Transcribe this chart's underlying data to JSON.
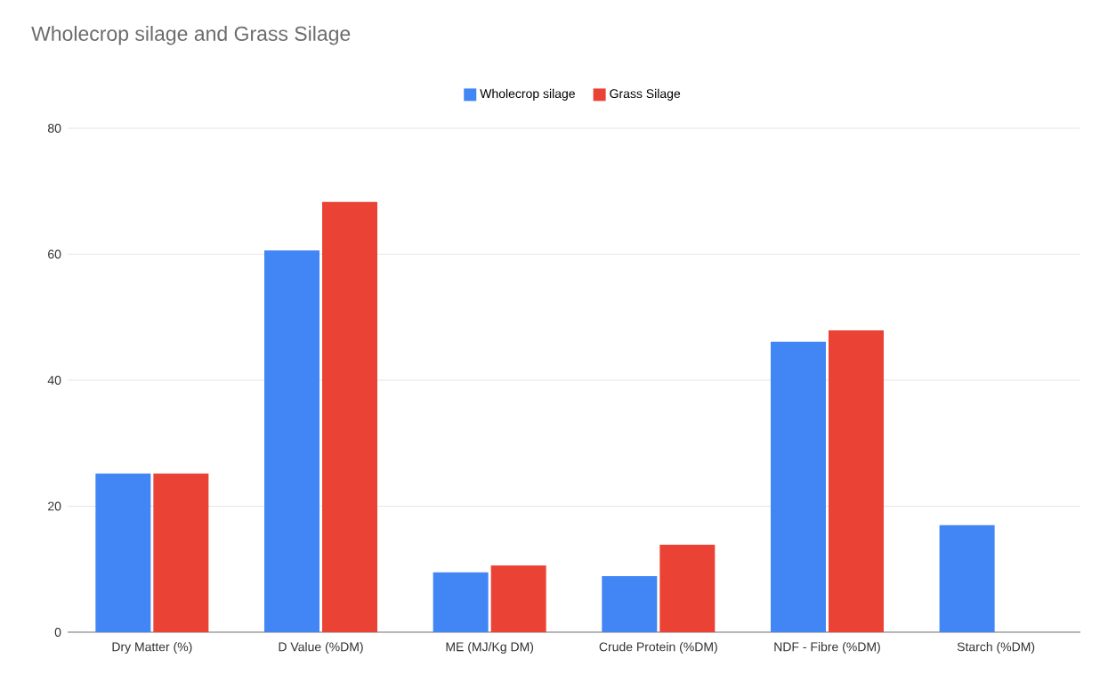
{
  "chart_data": {
    "type": "bar",
    "title": "Wholecrop silage and Grass Silage",
    "categories": [
      "Dry Matter (%)",
      "D Value (%DM)",
      "ME (MJ/Kg DM)",
      "Crude Protein (%DM)",
      "NDF - Fibre (%DM)",
      "Starch (%DM)"
    ],
    "series": [
      {
        "name": "Wholecrop silage",
        "color": "#4285f4",
        "values": [
          25.2,
          60.6,
          9.5,
          8.9,
          46.1,
          17.0
        ]
      },
      {
        "name": "Grass Silage",
        "color": "#ea4335",
        "values": [
          25.2,
          68.3,
          10.6,
          13.9,
          47.9,
          null
        ]
      }
    ],
    "ylim": [
      0,
      80
    ],
    "yticks": [
      0,
      20,
      40,
      60,
      80
    ],
    "grid": "y",
    "legend": "top"
  }
}
